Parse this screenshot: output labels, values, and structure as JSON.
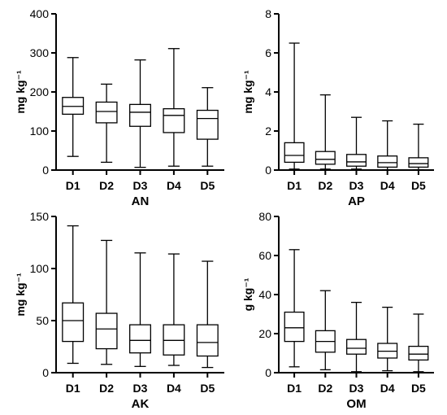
{
  "chart_data": [
    {
      "type": "box",
      "xlabel": "AN",
      "ylabel": "mg kg⁻¹",
      "categories": [
        "D1",
        "D2",
        "D3",
        "D4",
        "D5"
      ],
      "ylim": [
        0,
        400
      ],
      "yticks": [
        0,
        100,
        200,
        300,
        400
      ],
      "boxes": [
        {
          "min": 35,
          "q1": 143,
          "median": 163,
          "q3": 186,
          "max": 288
        },
        {
          "min": 20,
          "q1": 121,
          "median": 150,
          "q3": 174,
          "max": 220
        },
        {
          "min": 7,
          "q1": 112,
          "median": 148,
          "q3": 168,
          "max": 282
        },
        {
          "min": 10,
          "q1": 96,
          "median": 140,
          "q3": 157,
          "max": 311
        },
        {
          "min": 10,
          "q1": 79,
          "median": 132,
          "q3": 153,
          "max": 211
        }
      ]
    },
    {
      "type": "box",
      "xlabel": "AP",
      "ylabel": "mg kg⁻¹",
      "categories": [
        "D1",
        "D2",
        "D3",
        "D4",
        "D5"
      ],
      "ylim": [
        0,
        8
      ],
      "yticks": [
        0,
        2,
        4,
        6,
        8
      ],
      "boxes": [
        {
          "min": 0.05,
          "q1": 0.4,
          "median": 0.75,
          "q3": 1.4,
          "max": 6.5
        },
        {
          "min": 0.05,
          "q1": 0.3,
          "median": 0.55,
          "q3": 0.95,
          "max": 3.85
        },
        {
          "min": 0.05,
          "q1": 0.2,
          "median": 0.42,
          "q3": 0.8,
          "max": 2.7
        },
        {
          "min": 0.02,
          "q1": 0.15,
          "median": 0.38,
          "q3": 0.72,
          "max": 2.52
        },
        {
          "min": 0.02,
          "q1": 0.15,
          "median": 0.33,
          "q3": 0.63,
          "max": 2.35
        }
      ]
    },
    {
      "type": "box",
      "xlabel": "AK",
      "ylabel": "mg kg⁻¹",
      "categories": [
        "D1",
        "D2",
        "D3",
        "D4",
        "D5"
      ],
      "ylim": [
        0,
        150
      ],
      "yticks": [
        0,
        50,
        100,
        150
      ],
      "boxes": [
        {
          "min": 9,
          "q1": 30,
          "median": 50,
          "q3": 67,
          "max": 141
        },
        {
          "min": 8,
          "q1": 23,
          "median": 42,
          "q3": 57,
          "max": 127
        },
        {
          "min": 6,
          "q1": 19,
          "median": 31,
          "q3": 46,
          "max": 115
        },
        {
          "min": 7,
          "q1": 17,
          "median": 31,
          "q3": 46,
          "max": 114
        },
        {
          "min": 5,
          "q1": 16,
          "median": 29,
          "q3": 46,
          "max": 107
        }
      ]
    },
    {
      "type": "box",
      "xlabel": "OM",
      "ylabel": "g kg⁻¹",
      "categories": [
        "D1",
        "D2",
        "D3",
        "D4",
        "D5"
      ],
      "ylim": [
        0,
        80
      ],
      "yticks": [
        0,
        20,
        40,
        60,
        80
      ],
      "boxes": [
        {
          "min": 3,
          "q1": 16,
          "median": 23,
          "q3": 31,
          "max": 63
        },
        {
          "min": 1.5,
          "q1": 10.5,
          "median": 16,
          "q3": 21.5,
          "max": 42
        },
        {
          "min": 0.5,
          "q1": 9.5,
          "median": 12.5,
          "q3": 17,
          "max": 36
        },
        {
          "min": 1,
          "q1": 7.5,
          "median": 11,
          "q3": 15,
          "max": 33.5
        },
        {
          "min": 0.5,
          "q1": 6.5,
          "median": 9.5,
          "q3": 13.5,
          "max": 30
        }
      ]
    }
  ]
}
